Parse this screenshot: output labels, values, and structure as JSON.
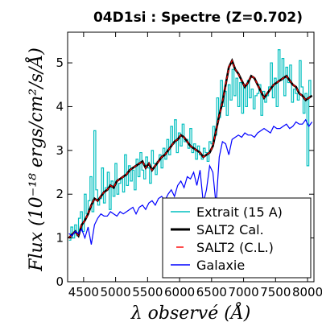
{
  "chart_data": {
    "type": "line",
    "title": "04D1si : Spectre (Z=0.702)",
    "xlabel": "λ observé (Å)",
    "ylabel": "Flux (10⁻¹⁸ ergs/cm²/s/Å)",
    "xlim": [
      4250,
      8100
    ],
    "ylim": [
      0,
      5.7
    ],
    "xticks": [
      4500,
      5000,
      5500,
      6000,
      6500,
      7000,
      7500,
      8000
    ],
    "yticks": [
      0,
      1,
      2,
      3,
      4,
      5
    ],
    "legend_position": "lower-right",
    "series": [
      {
        "name": "Extrait (15 A)",
        "color": "#00bfbf",
        "style": "step",
        "x": [
          4270,
          4300,
          4330,
          4360,
          4390,
          4420,
          4450,
          4480,
          4510,
          4540,
          4570,
          4600,
          4630,
          4660,
          4690,
          4720,
          4750,
          4780,
          4810,
          4840,
          4870,
          4900,
          4930,
          4960,
          4990,
          5020,
          5050,
          5080,
          5110,
          5140,
          5170,
          5200,
          5230,
          5260,
          5290,
          5320,
          5350,
          5380,
          5410,
          5440,
          5470,
          5500,
          5530,
          5560,
          5590,
          5620,
          5650,
          5680,
          5710,
          5740,
          5770,
          5800,
          5830,
          5860,
          5890,
          5920,
          5950,
          5980,
          6010,
          6040,
          6070,
          6100,
          6130,
          6160,
          6190,
          6220,
          6250,
          6280,
          6310,
          6340,
          6370,
          6400,
          6430,
          6460,
          6490,
          6520,
          6550,
          6580,
          6610,
          6640,
          6670,
          6700,
          6730,
          6760,
          6790,
          6820,
          6850,
          6880,
          6910,
          6940,
          6970,
          7000,
          7030,
          7060,
          7090,
          7120,
          7150,
          7180,
          7210,
          7240,
          7270,
          7300,
          7330,
          7360,
          7390,
          7420,
          7450,
          7480,
          7510,
          7540,
          7570,
          7600,
          7630,
          7660,
          7690,
          7720,
          7750,
          7780,
          7810,
          7840,
          7870,
          7900,
          7930,
          7960,
          7990,
          8020,
          8050
        ],
        "y": [
          0.95,
          1.25,
          1.0,
          1.3,
          1.05,
          1.45,
          1.6,
          1.15,
          2.0,
          1.55,
          1.85,
          2.4,
          1.6,
          3.45,
          2.1,
          1.75,
          1.9,
          2.6,
          1.8,
          2.15,
          2.5,
          1.65,
          2.3,
          1.95,
          2.7,
          2.0,
          2.25,
          2.35,
          2.05,
          2.9,
          2.2,
          2.65,
          2.3,
          2.55,
          2.1,
          2.8,
          2.4,
          2.95,
          2.55,
          2.35,
          2.85,
          2.6,
          2.25,
          3.0,
          2.7,
          2.45,
          2.75,
          2.9,
          2.6,
          3.05,
          2.8,
          3.25,
          2.9,
          3.55,
          3.15,
          3.7,
          2.95,
          3.4,
          3.1,
          3.6,
          3.2,
          3.25,
          3.05,
          3.5,
          2.95,
          3.15,
          2.8,
          3.1,
          2.9,
          2.8,
          3.05,
          2.95,
          2.75,
          3.2,
          3.15,
          3.55,
          3.35,
          4.2,
          3.75,
          4.6,
          4.0,
          4.35,
          3.8,
          4.5,
          4.15,
          4.85,
          4.25,
          4.65,
          4.0,
          4.55,
          3.85,
          4.45,
          4.0,
          4.6,
          4.2,
          4.4,
          3.95,
          4.25,
          4.3,
          4.5,
          3.8,
          4.35,
          4.1,
          4.25,
          4.45,
          5.0,
          4.2,
          4.65,
          4.0,
          5.3,
          4.6,
          5.1,
          4.25,
          4.9,
          4.55,
          4.95,
          4.1,
          4.4,
          4.3,
          4.15,
          5.05,
          4.45,
          3.85,
          4.3,
          2.65,
          4.6,
          4.25
        ]
      },
      {
        "name": "SALT2 Cal.",
        "color": "#000000",
        "style": "line",
        "x": [
          4270,
          4320,
          4370,
          4420,
          4470,
          4520,
          4570,
          4620,
          4670,
          4720,
          4770,
          4820,
          4870,
          4920,
          4970,
          5020,
          5070,
          5120,
          5170,
          5220,
          5270,
          5320,
          5370,
          5420,
          5470,
          5520,
          5570,
          5620,
          5670,
          5720,
          5770,
          5820,
          5870,
          5920,
          5970,
          6020,
          6070,
          6120,
          6170,
          6220,
          6270,
          6320,
          6370,
          6420,
          6470,
          6520,
          6570,
          6620,
          6670,
          6720,
          6770,
          6820,
          6870,
          6920,
          6970,
          7020,
          7070,
          7120,
          7170,
          7220,
          7270,
          7320,
          7370,
          7420,
          7470,
          7520,
          7570,
          7620,
          7670,
          7720,
          7770,
          7820,
          7870,
          7920,
          7970,
          8020,
          8070
        ],
        "y": [
          1.0,
          1.08,
          1.15,
          1.05,
          1.3,
          1.4,
          1.55,
          1.75,
          1.9,
          1.85,
          1.95,
          2.05,
          2.1,
          2.2,
          2.15,
          2.3,
          2.35,
          2.4,
          2.45,
          2.55,
          2.6,
          2.65,
          2.7,
          2.75,
          2.6,
          2.7,
          2.55,
          2.65,
          2.75,
          2.85,
          2.9,
          3.0,
          3.1,
          3.2,
          3.25,
          3.35,
          3.3,
          3.2,
          3.1,
          3.05,
          3.0,
          2.95,
          2.85,
          2.9,
          2.95,
          3.1,
          3.45,
          3.8,
          4.1,
          4.5,
          4.9,
          5.05,
          4.85,
          4.75,
          4.6,
          4.45,
          4.55,
          4.7,
          4.65,
          4.5,
          4.35,
          4.2,
          4.3,
          4.4,
          4.5,
          4.55,
          4.6,
          4.65,
          4.7,
          4.6,
          4.5,
          4.45,
          4.3,
          4.25,
          4.15,
          4.2,
          4.25
        ]
      },
      {
        "name": "SALT2 (C.L.)",
        "color": "#ff0000",
        "style": "dashed",
        "x": [
          4270,
          4320,
          4370,
          4420,
          4470,
          4520,
          4570,
          4620,
          4670,
          4720,
          4770,
          4820,
          4870,
          4920,
          4970,
          5020,
          5070,
          5120,
          5170,
          5220,
          5270,
          5320,
          5370,
          5420,
          5470,
          5520,
          5570,
          5620,
          5670,
          5720,
          5770,
          5820,
          5870,
          5920,
          5970,
          6020,
          6070,
          6120,
          6170,
          6220,
          6270,
          6320,
          6370,
          6420,
          6470,
          6520,
          6570,
          6620,
          6670,
          6720,
          6770,
          6820,
          6870,
          6920,
          6970,
          7020,
          7070,
          7120,
          7170,
          7220,
          7270,
          7320,
          7370,
          7420,
          7470,
          7520,
          7570,
          7620,
          7670,
          7720,
          7770,
          7820,
          7870,
          7920,
          7970,
          8020,
          8070
        ],
        "y": [
          1.0,
          1.08,
          1.15,
          1.05,
          1.3,
          1.4,
          1.55,
          1.75,
          1.9,
          1.85,
          1.95,
          2.05,
          2.1,
          2.2,
          2.15,
          2.3,
          2.35,
          2.4,
          2.45,
          2.55,
          2.6,
          2.65,
          2.7,
          2.75,
          2.6,
          2.7,
          2.55,
          2.65,
          2.75,
          2.85,
          2.9,
          3.0,
          3.1,
          3.2,
          3.25,
          3.35,
          3.3,
          3.2,
          3.1,
          3.05,
          3.0,
          2.95,
          2.85,
          2.9,
          2.95,
          3.1,
          3.45,
          3.8,
          4.1,
          4.5,
          4.9,
          5.05,
          4.85,
          4.75,
          4.6,
          4.45,
          4.55,
          4.7,
          4.65,
          4.5,
          4.35,
          4.2,
          4.3,
          4.4,
          4.5,
          4.55,
          4.6,
          4.65,
          4.7,
          4.6,
          4.5,
          4.45,
          4.3,
          4.25,
          4.15,
          4.2,
          4.25
        ]
      },
      {
        "name": "Galaxie",
        "color": "#0000ff",
        "style": "line",
        "x": [
          4270,
          4320,
          4370,
          4420,
          4470,
          4520,
          4570,
          4620,
          4670,
          4720,
          4770,
          4820,
          4870,
          4920,
          4970,
          5020,
          5070,
          5120,
          5170,
          5220,
          5270,
          5320,
          5370,
          5420,
          5470,
          5520,
          5570,
          5620,
          5670,
          5720,
          5770,
          5820,
          5870,
          5920,
          5970,
          6020,
          6070,
          6120,
          6170,
          6220,
          6270,
          6320,
          6370,
          6420,
          6470,
          6520,
          6570,
          6620,
          6670,
          6720,
          6770,
          6820,
          6870,
          6920,
          6970,
          7020,
          7070,
          7120,
          7170,
          7220,
          7270,
          7320,
          7370,
          7420,
          7470,
          7520,
          7570,
          7620,
          7670,
          7720,
          7770,
          7820,
          7870,
          7920,
          7970,
          8020,
          8070
        ],
        "y": [
          1.1,
          1.05,
          1.15,
          1.1,
          1.2,
          1.0,
          1.25,
          0.85,
          1.3,
          1.45,
          1.55,
          1.5,
          1.5,
          1.6,
          1.55,
          1.5,
          1.6,
          1.55,
          1.6,
          1.65,
          1.7,
          1.55,
          1.7,
          1.75,
          1.65,
          1.8,
          1.85,
          1.75,
          1.9,
          1.95,
          1.85,
          2.0,
          2.1,
          1.95,
          2.2,
          2.3,
          2.15,
          2.4,
          2.35,
          2.5,
          2.2,
          2.55,
          1.8,
          2.1,
          2.65,
          2.5,
          1.75,
          2.85,
          3.2,
          3.15,
          2.9,
          3.25,
          3.3,
          3.35,
          3.3,
          3.4,
          3.35,
          3.35,
          3.3,
          3.4,
          3.45,
          3.5,
          3.45,
          3.4,
          3.55,
          3.5,
          3.5,
          3.55,
          3.6,
          3.5,
          3.55,
          3.65,
          3.6,
          3.6,
          3.7,
          3.55,
          3.65
        ]
      }
    ]
  }
}
